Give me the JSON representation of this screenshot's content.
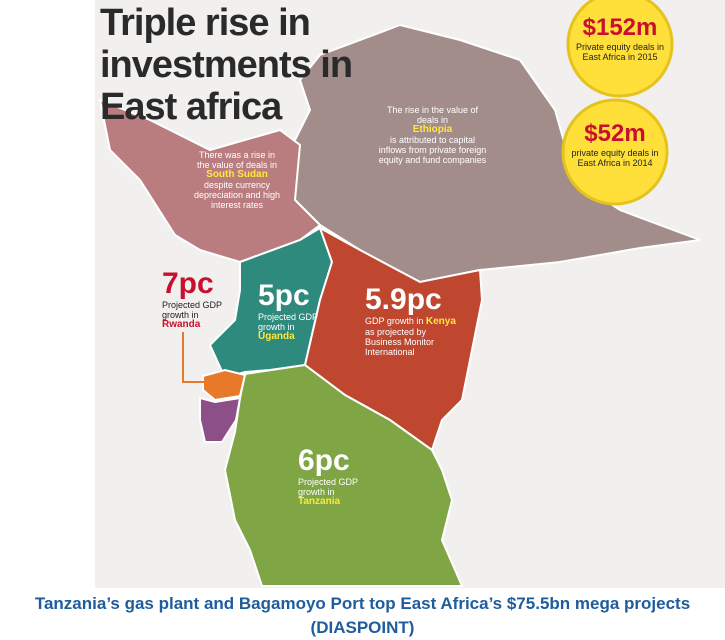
{
  "title": [
    "Triple rise in",
    "investments in",
    "East africa"
  ],
  "badges": [
    {
      "amount": "$152m",
      "text": "Private equity deals in East Africa in 2015"
    },
    {
      "amount": "$52m",
      "text": "private equity deals in East Africa in 2014"
    }
  ],
  "regions": {
    "ethiopia": {
      "before": "The rise in the value of deals in",
      "name": "Ethiopia",
      "after": "is attributed to capital inflows from private foreign equity and fund companies"
    },
    "south_sudan": {
      "before": "There was a rise in the value of deals in",
      "name": "South Sudan",
      "after": "despite currency depreciation and high interest rates"
    },
    "rwanda": {
      "figure": "7pc",
      "before": "Projected GDP growth in",
      "name": "Rwanda"
    },
    "uganda": {
      "figure": "5pc",
      "before": "Projected GDP growth in",
      "name": "Uganda"
    },
    "kenya": {
      "figure": "5.9pc",
      "before": "GDP growth in",
      "name": "Kenya",
      "after": "as projected by Business Monitor International"
    },
    "tanzania": {
      "figure": "6pc",
      "before": "Projected GDP growth in",
      "name": "Tanzania"
    }
  },
  "caption": "Tanzania’s gas plant and Bagamoyo Port top East Africa’s $75.5bn mega projects (DIASPOINT)"
}
